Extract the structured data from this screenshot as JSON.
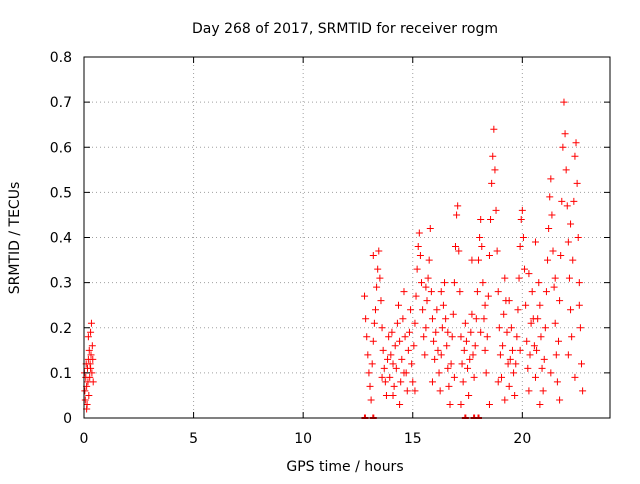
{
  "chart_data": {
    "type": "scatter",
    "title": "Day 268 of 2017, SRMTID for receiver rogm",
    "xlabel": "GPS time / hours",
    "ylabel": "SRMTID / TECUs",
    "xlim": [
      0,
      24
    ],
    "ylim": [
      0,
      0.8
    ],
    "x_ticks": [
      0,
      5,
      10,
      15,
      20
    ],
    "y_ticks": [
      0,
      0.1,
      0.2,
      0.3,
      0.4,
      0.5,
      0.6,
      0.7,
      0.8
    ],
    "y_tick_labels": [
      "0",
      "0.1",
      "0.2",
      "0.3",
      "0.4",
      "0.5",
      "0.6",
      "0.7",
      "0.8"
    ],
    "grid": true,
    "marker": "+",
    "color": "#ff0000",
    "series": [
      {
        "points": [
          [
            0.02,
            0.1
          ],
          [
            0.04,
            0.06
          ],
          [
            0.06,
            0.04
          ],
          [
            0.08,
            0.09
          ],
          [
            0.1,
            0.12
          ],
          [
            0.12,
            0.07
          ],
          [
            0.14,
            0.03
          ],
          [
            0.16,
            0.11
          ],
          [
            0.18,
            0.08
          ],
          [
            0.2,
            0.13
          ],
          [
            0.22,
            0.05
          ],
          [
            0.24,
            0.15
          ],
          [
            0.26,
            0.09
          ],
          [
            0.28,
            0.12
          ],
          [
            0.3,
            0.19
          ],
          [
            0.32,
            0.14
          ],
          [
            0.34,
            0.21
          ],
          [
            0.36,
            0.1
          ],
          [
            0.38,
            0.16
          ],
          [
            0.4,
            0.13
          ],
          [
            0.42,
            0.08
          ],
          [
            0.12,
            0.02
          ],
          [
            0.2,
            0.18
          ],
          [
            0.3,
            0.11
          ],
          [
            12.8,
            0.27
          ],
          [
            12.85,
            0.22
          ],
          [
            12.9,
            0.18
          ],
          [
            12.95,
            0.14
          ],
          [
            13.0,
            0.1
          ],
          [
            13.05,
            0.07
          ],
          [
            13.1,
            0.04
          ],
          [
            13.15,
            0.12
          ],
          [
            13.2,
            0.17
          ],
          [
            13.25,
            0.21
          ],
          [
            13.3,
            0.24
          ],
          [
            13.35,
            0.29
          ],
          [
            13.4,
            0.33
          ],
          [
            13.45,
            0.37
          ],
          [
            13.5,
            0.31
          ],
          [
            13.55,
            0.26
          ],
          [
            13.6,
            0.2
          ],
          [
            13.65,
            0.15
          ],
          [
            13.7,
            0.11
          ],
          [
            13.75,
            0.08
          ],
          [
            13.8,
            0.05
          ],
          [
            13.85,
            0.13
          ],
          [
            13.9,
            0.18
          ],
          [
            13.95,
            0.09
          ],
          [
            14.0,
            0.14
          ],
          [
            14.05,
            0.19
          ],
          [
            14.1,
            0.12
          ],
          [
            14.15,
            0.07
          ],
          [
            14.2,
            0.16
          ],
          [
            14.25,
            0.11
          ],
          [
            14.3,
            0.21
          ],
          [
            14.35,
            0.25
          ],
          [
            14.4,
            0.17
          ],
          [
            14.45,
            0.08
          ],
          [
            14.5,
            0.13
          ],
          [
            14.55,
            0.22
          ],
          [
            14.6,
            0.28
          ],
          [
            14.65,
            0.18
          ],
          [
            14.7,
            0.1
          ],
          [
            14.75,
            0.06
          ],
          [
            14.8,
            0.15
          ],
          [
            14.85,
            0.19
          ],
          [
            14.9,
            0.24
          ],
          [
            14.95,
            0.12
          ],
          [
            15.0,
            0.08
          ],
          [
            15.05,
            0.16
          ],
          [
            15.1,
            0.21
          ],
          [
            15.15,
            0.27
          ],
          [
            15.2,
            0.33
          ],
          [
            15.25,
            0.38
          ],
          [
            15.3,
            0.41
          ],
          [
            15.35,
            0.36
          ],
          [
            15.4,
            0.3
          ],
          [
            15.45,
            0.24
          ],
          [
            15.5,
            0.18
          ],
          [
            15.55,
            0.14
          ],
          [
            15.6,
            0.2
          ],
          [
            15.65,
            0.26
          ],
          [
            15.7,
            0.31
          ],
          [
            15.75,
            0.35
          ],
          [
            15.8,
            0.42
          ],
          [
            15.85,
            0.28
          ],
          [
            15.9,
            0.22
          ],
          [
            15.95,
            0.17
          ],
          [
            16.0,
            0.13
          ],
          [
            16.05,
            0.19
          ],
          [
            16.1,
            0.24
          ],
          [
            16.15,
            0.15
          ],
          [
            16.2,
            0.1
          ],
          [
            16.25,
            0.06
          ],
          [
            16.3,
            0.14
          ],
          [
            16.35,
            0.2
          ],
          [
            16.4,
            0.25
          ],
          [
            16.45,
            0.3
          ],
          [
            16.5,
            0.22
          ],
          [
            16.55,
            0.16
          ],
          [
            16.6,
            0.11
          ],
          [
            16.65,
            0.07
          ],
          [
            16.7,
            0.03
          ],
          [
            16.75,
            0.12
          ],
          [
            16.8,
            0.18
          ],
          [
            16.85,
            0.23
          ],
          [
            16.9,
            0.3
          ],
          [
            16.95,
            0.38
          ],
          [
            17.0,
            0.45
          ],
          [
            17.05,
            0.47
          ],
          [
            17.1,
            0.37
          ],
          [
            17.15,
            0.28
          ],
          [
            17.2,
            0.18
          ],
          [
            17.25,
            0.12
          ],
          [
            17.3,
            0.08
          ],
          [
            17.35,
            0.15
          ],
          [
            17.4,
            0.21
          ],
          [
            17.45,
            0.17
          ],
          [
            17.5,
            0.11
          ],
          [
            17.55,
            0.05
          ],
          [
            17.6,
            0.13
          ],
          [
            17.65,
            0.19
          ],
          [
            17.7,
            0.23
          ],
          [
            17.75,
            0.14
          ],
          [
            17.8,
            0.09
          ],
          [
            17.85,
            0.16
          ],
          [
            17.9,
            0.22
          ],
          [
            17.95,
            0.28
          ],
          [
            18.0,
            0.35
          ],
          [
            18.05,
            0.4
          ],
          [
            18.1,
            0.44
          ],
          [
            18.15,
            0.38
          ],
          [
            18.2,
            0.3
          ],
          [
            18.25,
            0.22
          ],
          [
            18.3,
            0.15
          ],
          [
            18.35,
            0.1
          ],
          [
            18.4,
            0.18
          ],
          [
            18.45,
            0.27
          ],
          [
            18.5,
            0.36
          ],
          [
            18.55,
            0.44
          ],
          [
            18.6,
            0.52
          ],
          [
            18.65,
            0.58
          ],
          [
            18.7,
            0.64
          ],
          [
            18.75,
            0.55
          ],
          [
            18.8,
            0.46
          ],
          [
            18.85,
            0.37
          ],
          [
            18.9,
            0.28
          ],
          [
            18.95,
            0.2
          ],
          [
            19.0,
            0.14
          ],
          [
            19.05,
            0.09
          ],
          [
            19.1,
            0.16
          ],
          [
            19.15,
            0.23
          ],
          [
            19.2,
            0.31
          ],
          [
            19.25,
            0.26
          ],
          [
            19.3,
            0.19
          ],
          [
            19.35,
            0.12
          ],
          [
            19.4,
            0.07
          ],
          [
            19.45,
            0.13
          ],
          [
            19.5,
            0.2
          ],
          [
            19.55,
            0.15
          ],
          [
            19.6,
            0.1
          ],
          [
            19.65,
            0.05
          ],
          [
            19.7,
            0.12
          ],
          [
            19.75,
            0.18
          ],
          [
            19.8,
            0.24
          ],
          [
            19.85,
            0.31
          ],
          [
            19.9,
            0.38
          ],
          [
            19.95,
            0.44
          ],
          [
            20.0,
            0.46
          ],
          [
            20.05,
            0.4
          ],
          [
            20.1,
            0.33
          ],
          [
            20.15,
            0.25
          ],
          [
            20.2,
            0.17
          ],
          [
            20.25,
            0.11
          ],
          [
            20.3,
            0.06
          ],
          [
            20.35,
            0.14
          ],
          [
            20.4,
            0.21
          ],
          [
            20.45,
            0.28
          ],
          [
            20.5,
            0.22
          ],
          [
            20.55,
            0.16
          ],
          [
            20.6,
            0.09
          ],
          [
            20.65,
            0.15
          ],
          [
            20.7,
            0.22
          ],
          [
            20.75,
            0.3
          ],
          [
            20.8,
            0.25
          ],
          [
            20.85,
            0.18
          ],
          [
            20.9,
            0.11
          ],
          [
            20.95,
            0.06
          ],
          [
            21.0,
            0.13
          ],
          [
            21.05,
            0.2
          ],
          [
            21.1,
            0.28
          ],
          [
            21.15,
            0.35
          ],
          [
            21.2,
            0.42
          ],
          [
            21.25,
            0.49
          ],
          [
            21.3,
            0.53
          ],
          [
            21.35,
            0.45
          ],
          [
            21.4,
            0.37
          ],
          [
            21.45,
            0.29
          ],
          [
            21.5,
            0.21
          ],
          [
            21.55,
            0.14
          ],
          [
            21.6,
            0.08
          ],
          [
            21.65,
            0.17
          ],
          [
            21.7,
            0.26
          ],
          [
            21.75,
            0.36
          ],
          [
            21.8,
            0.48
          ],
          [
            21.85,
            0.6
          ],
          [
            21.9,
            0.7
          ],
          [
            21.95,
            0.63
          ],
          [
            22.0,
            0.55
          ],
          [
            22.05,
            0.47
          ],
          [
            22.1,
            0.39
          ],
          [
            22.15,
            0.31
          ],
          [
            22.2,
            0.24
          ],
          [
            22.25,
            0.18
          ],
          [
            22.3,
            0.35
          ],
          [
            22.35,
            0.48
          ],
          [
            22.4,
            0.58
          ],
          [
            22.45,
            0.61
          ],
          [
            22.5,
            0.52
          ],
          [
            22.55,
            0.4
          ],
          [
            22.6,
            0.3
          ],
          [
            22.65,
            0.2
          ],
          [
            22.7,
            0.12
          ],
          [
            22.75,
            0.06
          ],
          [
            13.2,
            0.36
          ],
          [
            13.6,
            0.09
          ],
          [
            14.1,
            0.05
          ],
          [
            14.6,
            0.1
          ],
          [
            15.1,
            0.06
          ],
          [
            15.9,
            0.08
          ],
          [
            16.3,
            0.28
          ],
          [
            16.6,
            0.19
          ],
          [
            17.2,
            0.03
          ],
          [
            18.1,
            0.19
          ],
          [
            18.9,
            0.08
          ],
          [
            19.4,
            0.26
          ],
          [
            19.9,
            0.15
          ],
          [
            20.3,
            0.32
          ],
          [
            20.8,
            0.03
          ],
          [
            21.3,
            0.1
          ],
          [
            21.7,
            0.04
          ],
          [
            22.1,
            0.14
          ],
          [
            22.4,
            0.09
          ],
          [
            22.6,
            0.25
          ],
          [
            14.4,
            0.03
          ],
          [
            15.6,
            0.29
          ],
          [
            16.9,
            0.09
          ],
          [
            18.5,
            0.03
          ],
          [
            19.2,
            0.04
          ],
          [
            20.6,
            0.39
          ],
          [
            21.5,
            0.31
          ],
          [
            22.2,
            0.43
          ],
          [
            17.7,
            0.35
          ],
          [
            18.3,
            0.25
          ]
        ]
      }
    ],
    "baseline_x": [
      12.82,
      13.2,
      17.4,
      17.8,
      18.0
    ]
  }
}
